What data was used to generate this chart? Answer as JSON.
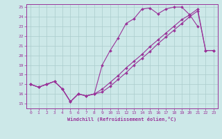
{
  "xlabel": "Windchill (Refroidissement éolien,°C)",
  "xlim": [
    -0.5,
    23.5
  ],
  "ylim": [
    14.5,
    25.3
  ],
  "yticks": [
    15,
    16,
    17,
    18,
    19,
    20,
    21,
    22,
    23,
    24,
    25
  ],
  "xticks": [
    0,
    1,
    2,
    3,
    4,
    5,
    6,
    7,
    8,
    9,
    10,
    11,
    12,
    13,
    14,
    15,
    16,
    17,
    18,
    19,
    20,
    21,
    22,
    23
  ],
  "bg_color": "#cce8e8",
  "line_color": "#993399",
  "grid_color": "#aacccc",
  "line1_x": [
    0,
    1,
    2,
    3,
    4,
    5,
    6,
    7,
    8,
    9,
    10,
    11,
    12,
    13,
    14,
    15,
    16,
    17,
    18,
    19,
    20,
    21
  ],
  "line1_y": [
    17.0,
    16.7,
    17.0,
    17.3,
    16.5,
    15.2,
    16.0,
    15.8,
    16.0,
    19.0,
    20.5,
    21.8,
    23.3,
    23.8,
    24.8,
    24.9,
    24.3,
    24.8,
    25.0,
    25.0,
    24.2,
    23.0
  ],
  "line2_x": [
    0,
    1,
    2,
    3,
    4,
    5,
    6,
    7,
    8,
    9,
    10,
    11,
    12,
    13,
    14,
    15,
    16,
    17,
    18,
    19,
    20,
    21,
    22,
    23
  ],
  "line2_y": [
    17.0,
    16.7,
    17.0,
    17.3,
    16.5,
    15.2,
    16.0,
    15.8,
    16.0,
    16.5,
    17.2,
    17.9,
    18.7,
    19.4,
    20.1,
    20.9,
    21.6,
    22.3,
    23.0,
    23.7,
    24.2,
    24.8,
    20.5,
    20.5
  ],
  "line3_x": [
    0,
    1,
    2,
    3,
    4,
    5,
    6,
    7,
    8,
    9,
    10,
    11,
    12,
    13,
    14,
    15,
    16,
    17,
    18,
    19,
    20,
    21,
    22,
    23
  ],
  "line3_y": [
    17.0,
    16.7,
    17.0,
    17.3,
    16.5,
    15.2,
    16.0,
    15.8,
    16.0,
    16.2,
    16.8,
    17.5,
    18.2,
    19.0,
    19.7,
    20.4,
    21.2,
    21.9,
    22.6,
    23.3,
    24.0,
    24.6,
    20.5,
    20.5
  ]
}
